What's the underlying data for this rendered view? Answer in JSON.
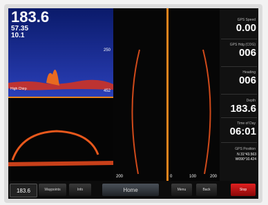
{
  "header": {
    "depth": "183.6",
    "temperature": "57.35",
    "speed": "10.1"
  },
  "sonar": {
    "scale": [
      "250",
      "452"
    ],
    "frequency": "High Chirp"
  },
  "sidevu": {
    "scale": [
      "200",
      "0",
      "100",
      "200"
    ]
  },
  "data_fields": [
    {
      "label": "GPS Speed",
      "value": "0.00"
    },
    {
      "label": "GPS Hdg (COG)",
      "value": "006"
    },
    {
      "label": "Heading",
      "value": "006"
    },
    {
      "label": "Depth",
      "value": "183.6"
    },
    {
      "label": "Time of Day",
      "value": "06:01"
    },
    {
      "label": "GPS Position",
      "lines": [
        "N 31°43.563",
        "W090°10.424"
      ]
    }
  ],
  "toolbar": [
    "183.6",
    "Waypoints",
    "Info",
    "Home",
    "Menu",
    "Back",
    "Stop"
  ]
}
